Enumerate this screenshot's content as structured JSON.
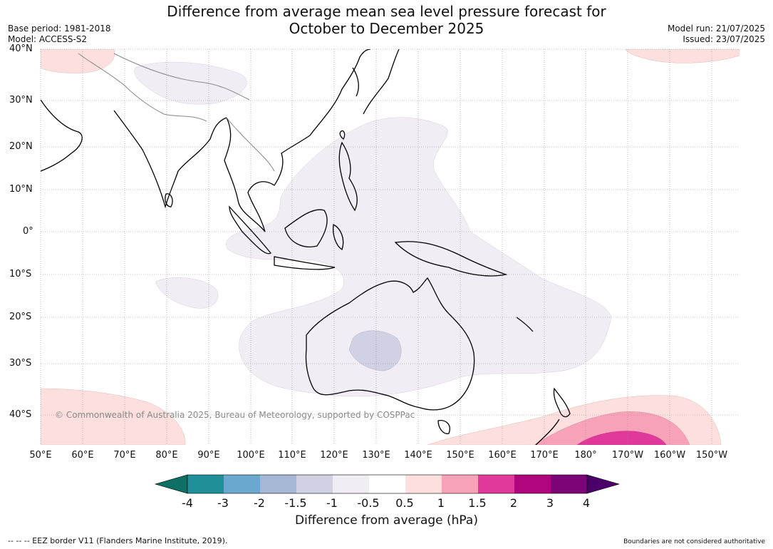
{
  "title": {
    "line1": "Difference from average mean sea level pressure forecast for",
    "line2": "October to December 2025"
  },
  "meta": {
    "base_period": "Base period: 1981-2018",
    "model": "Model: ACCESS-S2",
    "model_run": "Model run: 21/07/2025",
    "issued": "Issued: 23/07/2025"
  },
  "copyright": "© Commonwealth of Australia 2025, Bureau of Meteorology, supported by COSPPac",
  "footer": {
    "eez": "--  --  -- EEZ border V11 (Flanders Marine Institute, 2019).",
    "boundaries": "Boundaries are not considered authoritative"
  },
  "map": {
    "lat_labels": [
      "40°N",
      "30°N",
      "20°N",
      "10°N",
      "0°",
      "10°S",
      "20°S",
      "30°S",
      "40°S"
    ],
    "lon_labels": [
      "50°E",
      "60°E",
      "70°E",
      "80°E",
      "90°E",
      "100°E",
      "110°E",
      "120°E",
      "130°E",
      "140°E",
      "150°E",
      "160°E",
      "170°E",
      "180°",
      "170°W",
      "160°W",
      "150°W"
    ]
  },
  "colorbar": {
    "title": "Difference from average (hPa)",
    "tick_labels": [
      "-4",
      "-3",
      "-2",
      "-1.5",
      "-1",
      "-0.5",
      "0.5",
      "1",
      "1.5",
      "2",
      "3",
      "4"
    ],
    "colors": [
      "#0e6f64",
      "#1f8f9a",
      "#6aa8cf",
      "#a7b7d6",
      "#d2d1e3",
      "#f1edf4",
      "#ffffff",
      "#fde0de",
      "#f8a2b9",
      "#e0399a",
      "#b0057d",
      "#7c0476",
      "#4a0068"
    ]
  }
}
